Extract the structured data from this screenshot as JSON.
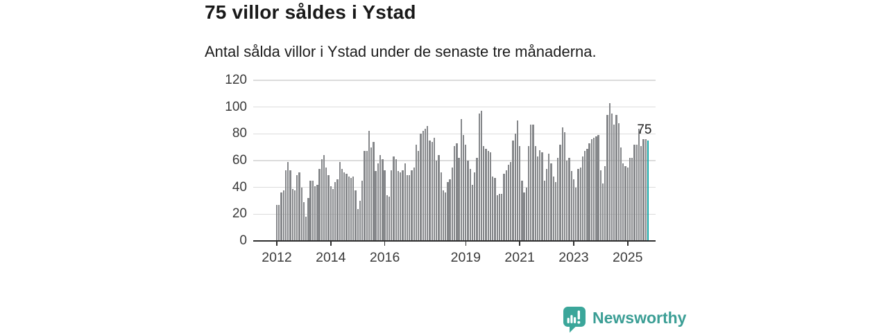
{
  "header": {
    "title": "75 villor såldes i Ystad",
    "subtitle": "Antal sålda villor i Ystad under de senaste tre månaderna."
  },
  "branding": {
    "logo_text": "Newsworthy",
    "logo_icon": "speech-bubble-bar-chart-icon",
    "logo_color": "#3BA69A",
    "logo_text_color": "#3B9E95"
  },
  "chart_data": {
    "type": "bar",
    "title": "75 villor såldes i Ystad",
    "subtitle": "Antal sålda villor i Ystad under de senaste tre månaderna.",
    "series_description": "monthly rolling 3-month count of houses sold, Jan 2012 - Oct 2025",
    "values": [
      27,
      27,
      36,
      38,
      53,
      59,
      53,
      39,
      38,
      49,
      51,
      40,
      29,
      18,
      32,
      45,
      45,
      41,
      42,
      54,
      61,
      64,
      55,
      49,
      41,
      39,
      44,
      46,
      59,
      54,
      51,
      50,
      48,
      47,
      48,
      38,
      24,
      30,
      45,
      67,
      67,
      82,
      70,
      74,
      52,
      58,
      64,
      61,
      53,
      34,
      33,
      53,
      63,
      61,
      52,
      51,
      53,
      58,
      49,
      49,
      53,
      55,
      72,
      67,
      80,
      82,
      84,
      86,
      75,
      74,
      77,
      60,
      64,
      51,
      38,
      36,
      44,
      46,
      55,
      71,
      73,
      62,
      91,
      79,
      72,
      60,
      54,
      42,
      51,
      62,
      95,
      97,
      71,
      69,
      67,
      66,
      48,
      47,
      34,
      35,
      35,
      50,
      53,
      57,
      59,
      75,
      80,
      90,
      71,
      45,
      36,
      40,
      71,
      87,
      87,
      71,
      63,
      68,
      66,
      45,
      54,
      65,
      58,
      48,
      44,
      62,
      72,
      85,
      81,
      60,
      62,
      52,
      46,
      40,
      54,
      55,
      63,
      67,
      69,
      73,
      76,
      77,
      78,
      79,
      53,
      43,
      56,
      94,
      103,
      95,
      87,
      94,
      88,
      70,
      58,
      56,
      55,
      62,
      62,
      72,
      72,
      84,
      71,
      76,
      76,
      75
    ],
    "highlight_last_bar": true,
    "annotation": {
      "label": "75",
      "applies_to": "last-bar"
    },
    "bar_color": "#85878A",
    "highlight_color": "#12A5A5",
    "grid": true,
    "grid_color": "#dbdbdb",
    "axis_color": "#2e2e2e",
    "label_color": "#3a3a3a",
    "ylim": [
      0,
      120
    ],
    "yticks": [
      0,
      20,
      40,
      60,
      80,
      100,
      120
    ],
    "xticks": [
      {
        "label": "2012",
        "index": 0
      },
      {
        "label": "2014",
        "index": 24
      },
      {
        "label": "2016",
        "index": 48
      },
      {
        "label": "2019",
        "index": 84
      },
      {
        "label": "2021",
        "index": 108
      },
      {
        "label": "2023",
        "index": 132
      },
      {
        "label": "2025",
        "index": 156
      }
    ],
    "legend": "none"
  }
}
